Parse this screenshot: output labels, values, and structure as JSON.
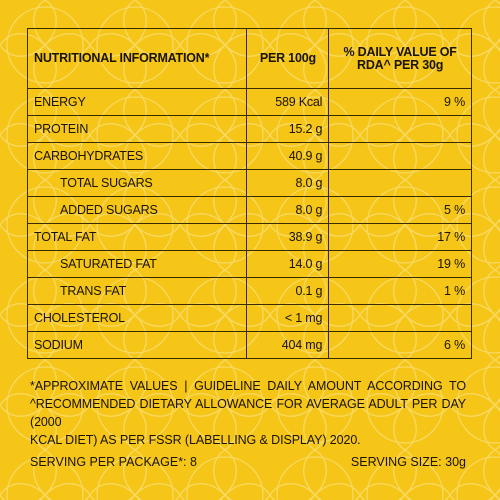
{
  "header": {
    "nutrient": "NUTRITIONAL INFORMATION*",
    "per_100g": "PER 100g",
    "rda_line1": "% DAILY VALUE OF",
    "rda_line2": "RDA^ PER 30g"
  },
  "rows": [
    {
      "name": "ENERGY",
      "per_100g": "589 Kcal",
      "rda": "9 %"
    },
    {
      "name": "PROTEIN",
      "per_100g": "15.2 g",
      "rda": ""
    },
    {
      "name": "CARBOHYDRATES",
      "per_100g": "40.9 g",
      "rda": ""
    },
    {
      "name": "TOTAL SUGARS",
      "per_100g": "8.0 g",
      "rda": ""
    },
    {
      "name": "ADDED SUGARS",
      "per_100g": "8.0 g",
      "rda": "5 %"
    },
    {
      "name": "TOTAL FAT",
      "per_100g": "38.9 g",
      "rda": "17 %"
    },
    {
      "name": "SATURATED FAT",
      "per_100g": "14.0 g",
      "rda": "19 %"
    },
    {
      "name": "TRANS FAT",
      "per_100g": "0.1 g",
      "rda": "1 %"
    },
    {
      "name": "CHOLESTEROL",
      "per_100g": "< 1 mg",
      "rda": ""
    },
    {
      "name": "SODIUM",
      "per_100g": "404 mg",
      "rda": "6 %"
    }
  ],
  "footnote": {
    "line1": "*APPROXIMATE VALUES | GUIDELINE DAILY AMOUNT ACCORDING TO",
    "line2": "^RECOMMENDED DIETARY ALLOWANCE FOR AVERAGE ADULT PER DAY (2000",
    "line3": "KCAL DIET) AS PER FSSR (LABELLING & DISPLAY) 2020."
  },
  "footer": {
    "serving_per_package": "SERVING PER PACKAGE*: 8",
    "serving_size": "SERVING SIZE: 30g"
  },
  "colors": {
    "background": "#f5c518",
    "text": "#1a1400",
    "pattern": "#f9dc6a"
  }
}
